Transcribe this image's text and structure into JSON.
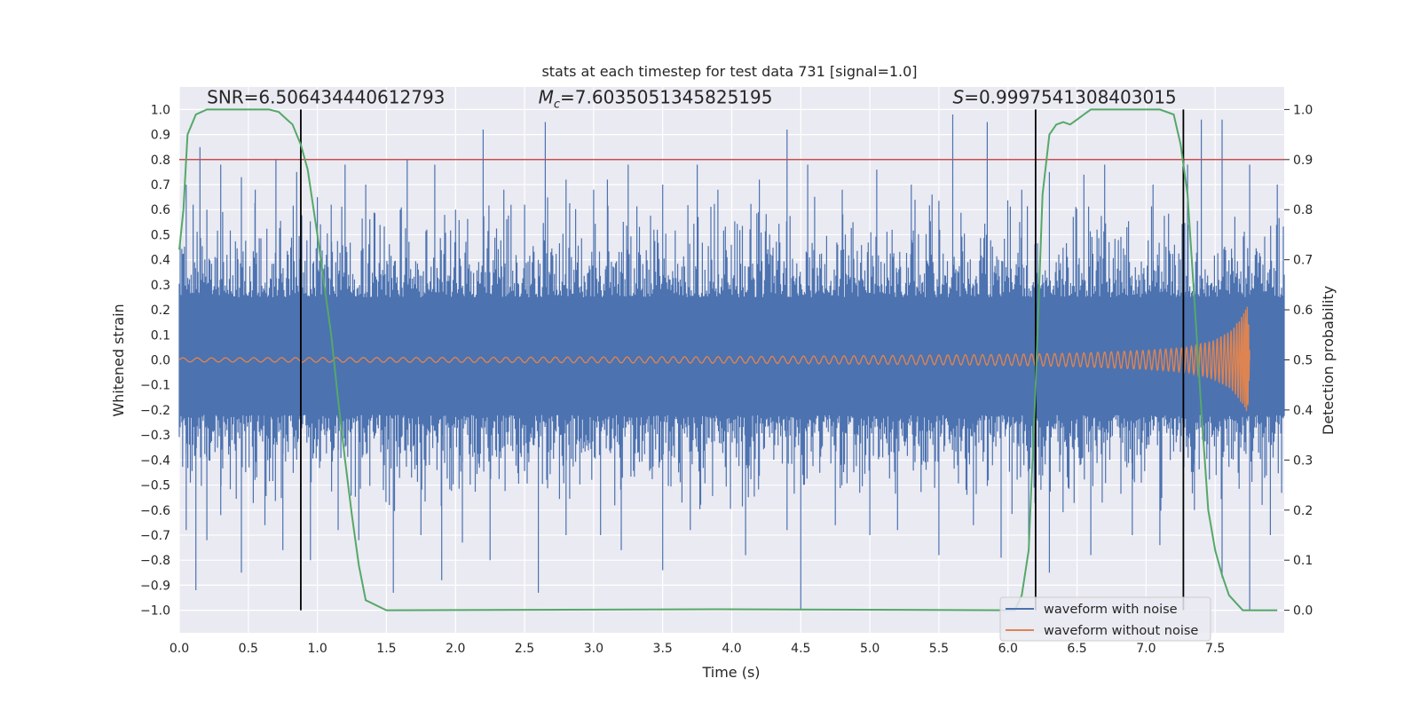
{
  "chart_data": {
    "type": "line",
    "title": "stats at each timestep for test data 731 [signal=1.0]",
    "xlabel": "Time (s)",
    "ylabel_left": "Whitened strain",
    "ylabel_right": "Detection probability",
    "xlim": [
      0.0,
      8.0
    ],
    "ylim_left": [
      -1.09,
      1.09
    ],
    "ylim_right": [
      -0.045,
      1.045
    ],
    "xticks": [
      "0.0",
      "0.5",
      "1.0",
      "1.5",
      "2.0",
      "2.5",
      "3.0",
      "3.5",
      "4.0",
      "4.5",
      "5.0",
      "5.5",
      "6.0",
      "6.5",
      "7.0",
      "7.5"
    ],
    "xtick_values": [
      0.0,
      0.5,
      1.0,
      1.5,
      2.0,
      2.5,
      3.0,
      3.5,
      4.0,
      4.5,
      5.0,
      5.5,
      6.0,
      6.5,
      7.0,
      7.5
    ],
    "yticks_left": [
      "1.0",
      "0.9",
      "0.8",
      "0.7",
      "0.6",
      "0.5",
      "0.4",
      "0.3",
      "0.2",
      "0.1",
      "0.0",
      "−0.1",
      "−0.2",
      "−0.3",
      "−0.4",
      "−0.5",
      "−0.6",
      "−0.7",
      "−0.8",
      "−0.9",
      "−1.0"
    ],
    "ytick_values_left": [
      1.0,
      0.9,
      0.8,
      0.7,
      0.6,
      0.5,
      0.4,
      0.3,
      0.2,
      0.1,
      0.0,
      -0.1,
      -0.2,
      -0.3,
      -0.4,
      -0.5,
      -0.6,
      -0.7,
      -0.8,
      -0.9,
      -1.0
    ],
    "yticks_right": [
      "1.0",
      "0.9",
      "0.8",
      "0.7",
      "0.6",
      "0.5",
      "0.4",
      "0.3",
      "0.2",
      "0.1",
      "0.0"
    ],
    "ytick_values_right": [
      1.0,
      0.9,
      0.8,
      0.7,
      0.6,
      0.5,
      0.4,
      0.3,
      0.2,
      0.1,
      0.0
    ],
    "grid": true,
    "annotations": {
      "snr": "SNR=6.506434440612793",
      "mc_symbol": "M",
      "mc_sub": "c",
      "mc_value": "=7.6035051345825195",
      "s_symbol": "S",
      "s_value": "=0.9997541308403015"
    },
    "annotation_x": {
      "snr": 0.2,
      "mc": 2.6,
      "s": 5.6
    },
    "threshold": {
      "axis": "right",
      "value": 0.9,
      "color": "#c44e52"
    },
    "vertical_lines": [
      0.88,
      6.2,
      7.27
    ],
    "noise_envelope": {
      "name": "waveform with noise",
      "color": "#4c72b0",
      "inner_positive": 0.22,
      "inner_negative": -0.21,
      "peaks_positive": [
        [
          0.05,
          0.7
        ],
        [
          0.1,
          0.62
        ],
        [
          0.15,
          0.85
        ],
        [
          0.2,
          0.6
        ],
        [
          0.3,
          0.78
        ],
        [
          0.45,
          0.73
        ],
        [
          0.55,
          0.68
        ],
        [
          0.7,
          0.8
        ],
        [
          0.85,
          0.75
        ],
        [
          1.0,
          0.65
        ],
        [
          1.1,
          0.62
        ],
        [
          1.2,
          0.78
        ],
        [
          1.35,
          0.7
        ],
        [
          1.6,
          0.6
        ],
        [
          1.65,
          0.8
        ],
        [
          1.85,
          0.78
        ],
        [
          2.0,
          0.6
        ],
        [
          2.2,
          0.92
        ],
        [
          2.35,
          0.68
        ],
        [
          2.5,
          0.62
        ],
        [
          2.65,
          0.95
        ],
        [
          2.8,
          0.72
        ],
        [
          3.0,
          0.68
        ],
        [
          3.1,
          0.72
        ],
        [
          3.25,
          0.78
        ],
        [
          3.5,
          0.7
        ],
        [
          3.75,
          0.78
        ],
        [
          3.9,
          0.68
        ],
        [
          4.2,
          0.72
        ],
        [
          4.4,
          0.92
        ],
        [
          4.55,
          0.78
        ],
        [
          4.8,
          0.68
        ],
        [
          5.05,
          0.76
        ],
        [
          5.3,
          0.7
        ],
        [
          5.45,
          0.66
        ],
        [
          5.6,
          0.98
        ],
        [
          5.85,
          0.95
        ],
        [
          6.1,
          0.68
        ],
        [
          6.3,
          0.75
        ],
        [
          6.55,
          0.74
        ],
        [
          6.7,
          0.78
        ],
        [
          7.05,
          0.7
        ],
        [
          7.3,
          0.78
        ],
        [
          7.4,
          0.96
        ],
        [
          7.55,
          0.96
        ],
        [
          7.75,
          0.78
        ],
        [
          7.95,
          0.7
        ]
      ],
      "peaks_negative": [
        [
          0.05,
          -0.68
        ],
        [
          0.12,
          -0.92
        ],
        [
          0.2,
          -0.72
        ],
        [
          0.3,
          -0.62
        ],
        [
          0.45,
          -0.85
        ],
        [
          0.62,
          -0.66
        ],
        [
          0.75,
          -0.76
        ],
        [
          0.95,
          -0.8
        ],
        [
          1.15,
          -0.68
        ],
        [
          1.3,
          -0.72
        ],
        [
          1.55,
          -0.93
        ],
        [
          1.75,
          -0.7
        ],
        [
          1.9,
          -0.88
        ],
        [
          2.05,
          -0.73
        ],
        [
          2.25,
          -0.8
        ],
        [
          2.6,
          -0.93
        ],
        [
          2.8,
          -0.7
        ],
        [
          3.05,
          -0.7
        ],
        [
          3.2,
          -0.76
        ],
        [
          3.5,
          -0.84
        ],
        [
          3.7,
          -0.68
        ],
        [
          4.1,
          -0.78
        ],
        [
          4.4,
          -0.68
        ],
        [
          4.5,
          -1.0
        ],
        [
          4.75,
          -0.66
        ],
        [
          5.0,
          -0.7
        ],
        [
          5.2,
          -0.68
        ],
        [
          5.5,
          -0.78
        ],
        [
          5.75,
          -0.66
        ],
        [
          5.95,
          -0.79
        ],
        [
          6.15,
          -0.74
        ],
        [
          6.3,
          -0.85
        ],
        [
          6.6,
          -0.78
        ],
        [
          6.9,
          -0.7
        ],
        [
          7.1,
          -0.74
        ],
        [
          7.35,
          -0.6
        ],
        [
          7.55,
          -0.87
        ],
        [
          7.75,
          -1.0
        ],
        [
          7.9,
          -0.7
        ]
      ]
    },
    "clean_waveform": {
      "name": "waveform without noise",
      "color": "#dd8452",
      "amplitude_points": [
        [
          0.0,
          0.008
        ],
        [
          2.0,
          0.01
        ],
        [
          4.0,
          0.013
        ],
        [
          5.0,
          0.017
        ],
        [
          6.0,
          0.022
        ],
        [
          6.5,
          0.027
        ],
        [
          7.0,
          0.038
        ],
        [
          7.3,
          0.05
        ],
        [
          7.5,
          0.08
        ],
        [
          7.62,
          0.12
        ],
        [
          7.7,
          0.18
        ],
        [
          7.74,
          0.22
        ],
        [
          7.75,
          0.0
        ]
      ],
      "cycles": 120
    },
    "detection_probability": {
      "name": "detection probability",
      "color": "#55a868",
      "x": [
        0.0,
        0.03,
        0.06,
        0.12,
        0.2,
        0.5,
        0.65,
        0.72,
        0.78,
        0.82,
        0.88,
        0.93,
        1.0,
        1.05,
        1.1,
        1.15,
        1.2,
        1.25,
        1.3,
        1.35,
        1.5,
        3.9,
        6.05,
        6.1,
        6.15,
        6.2,
        6.25,
        6.3,
        6.35,
        6.4,
        6.45,
        6.5,
        6.55,
        6.6,
        6.7,
        7.1,
        7.2,
        7.25,
        7.3,
        7.35,
        7.4,
        7.45,
        7.5,
        7.55,
        7.6,
        7.7,
        7.95
      ],
      "y": [
        0.72,
        0.8,
        0.95,
        0.99,
        1.0,
        1.0,
        1.0,
        0.995,
        0.98,
        0.97,
        0.93,
        0.88,
        0.75,
        0.65,
        0.55,
        0.42,
        0.3,
        0.19,
        0.09,
        0.02,
        0.0,
        0.002,
        0.0,
        0.03,
        0.12,
        0.45,
        0.83,
        0.95,
        0.97,
        0.975,
        0.97,
        0.98,
        0.99,
        1.0,
        1.0,
        1.0,
        0.99,
        0.93,
        0.83,
        0.62,
        0.4,
        0.2,
        0.12,
        0.07,
        0.03,
        0.0,
        0.0
      ]
    },
    "legend": {
      "placement": "bottom-right",
      "entries": [
        {
          "label": "waveform with noise",
          "color": "#4c72b0"
        },
        {
          "label": "waveform without noise",
          "color": "#dd8452"
        }
      ]
    }
  }
}
